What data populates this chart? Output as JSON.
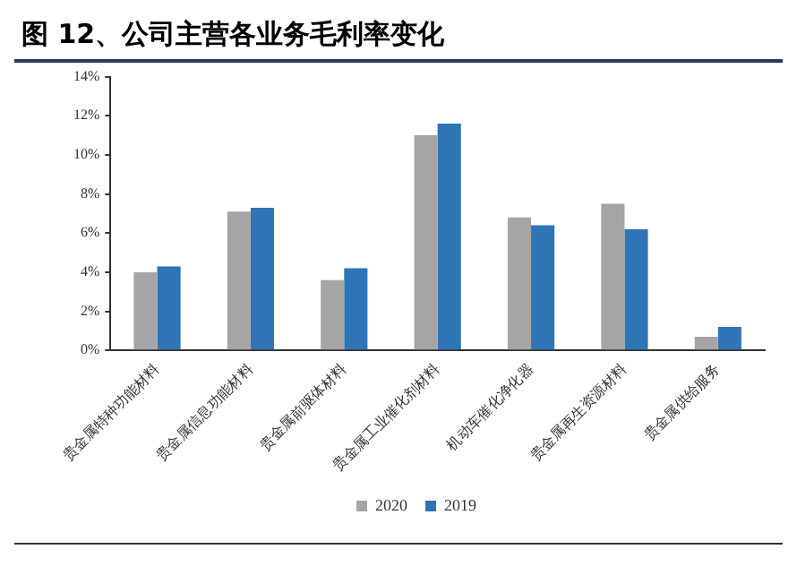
{
  "chart_data": {
    "type": "bar",
    "title": "图 12、公司主营各业务毛利率变化",
    "categories": [
      "贵金属特种功能材料",
      "贵金属信息功能材料",
      "贵金属前驱体材料",
      "贵金属工业催化剂材料",
      "机动车催化净化器",
      "贵金属再生资源材料",
      "贵金属供给服务"
    ],
    "series": [
      {
        "name": "2020",
        "color": "#a5a5a5",
        "values": [
          4.0,
          7.1,
          3.6,
          11.0,
          6.8,
          7.5,
          0.7
        ]
      },
      {
        "name": "2019",
        "color": "#2e75b6",
        "values": [
          4.3,
          7.3,
          4.2,
          11.6,
          6.4,
          6.2,
          1.2
        ]
      }
    ],
    "ylim": [
      0,
      14
    ],
    "yticks": [
      {
        "value": 0,
        "label": "0%"
      },
      {
        "value": 2,
        "label": "2%"
      },
      {
        "value": 4,
        "label": "4%"
      },
      {
        "value": 6,
        "label": "6%"
      },
      {
        "value": 8,
        "label": "8%"
      },
      {
        "value": 10,
        "label": "10%"
      },
      {
        "value": 12,
        "label": "12%"
      },
      {
        "value": 14,
        "label": "14%"
      }
    ],
    "grid": false,
    "legend": "bottom"
  }
}
